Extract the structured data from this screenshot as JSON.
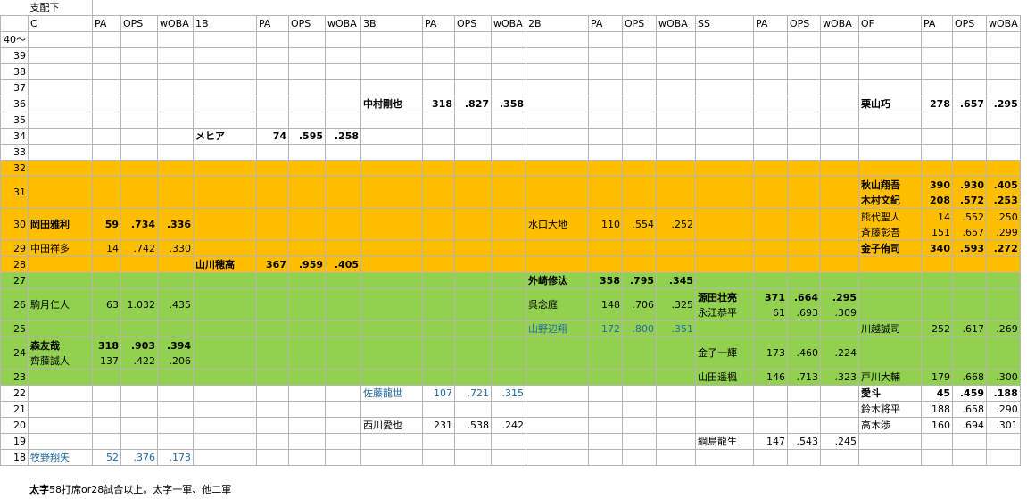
{
  "title": "支配下",
  "headers": [
    "C",
    "PA",
    "OPS",
    "wOBA",
    "1B",
    "PA",
    "OPS",
    "wOBA",
    "3B",
    "PA",
    "OPS",
    "wOBA",
    "2B",
    "PA",
    "OPS",
    "wOBA",
    "SS",
    "PA",
    "OPS",
    "wOBA",
    "OF",
    "PA",
    "OPS",
    "wOBA"
  ],
  "rows": [
    {
      "age": "40～",
      "band": "",
      "cells": []
    },
    {
      "age": "39",
      "band": "",
      "cells": []
    },
    {
      "age": "38",
      "band": "",
      "cells": []
    },
    {
      "age": "37",
      "band": "",
      "cells": []
    },
    {
      "age": "36",
      "band": "",
      "cells": [
        {
          "pos": "3B",
          "lines": [
            {
              "name": "中村剛也",
              "pa": "318",
              "ops": ".827",
              "woba": ".358",
              "style": "bold"
            }
          ]
        },
        {
          "pos": "OF",
          "lines": [
            {
              "name": "栗山巧",
              "pa": "278",
              "ops": ".657",
              "woba": ".295",
              "style": "bold"
            }
          ]
        }
      ]
    },
    {
      "age": "35",
      "band": "",
      "cells": []
    },
    {
      "age": "34",
      "band": "",
      "cells": [
        {
          "pos": "1B",
          "lines": [
            {
              "name": "メヒア",
              "pa": "74",
              "ops": ".595",
              "woba": ".258",
              "style": "bold"
            }
          ]
        }
      ]
    },
    {
      "age": "33",
      "band": "",
      "cells": []
    },
    {
      "age": "32",
      "band": "orange",
      "cells": []
    },
    {
      "age": "31",
      "band": "orange",
      "tall": true,
      "cells": [
        {
          "pos": "OF",
          "lines": [
            {
              "name": "秋山翔吾",
              "pa": "390",
              "ops": ".930",
              "woba": ".405",
              "style": "bold"
            },
            {
              "name": "木村文紀",
              "pa": "208",
              "ops": ".572",
              "woba": ".253",
              "style": "bold"
            }
          ]
        }
      ]
    },
    {
      "age": "30",
      "band": "orange",
      "tall": true,
      "cells": [
        {
          "pos": "C",
          "lines": [
            {
              "name": "岡田雅利",
              "pa": "59",
              "ops": ".734",
              "woba": ".336",
              "style": "bold"
            }
          ]
        },
        {
          "pos": "2B",
          "lines": [
            {
              "name": "水口大地",
              "pa": "110",
              "ops": ".554",
              "woba": ".252",
              "style": ""
            }
          ]
        },
        {
          "pos": "OF",
          "lines": [
            {
              "name": "熊代聖人",
              "pa": "14",
              "ops": ".552",
              "woba": ".250",
              "style": ""
            },
            {
              "name": "斉藤彰吾",
              "pa": "151",
              "ops": ".657",
              "woba": ".299",
              "style": ""
            }
          ]
        }
      ]
    },
    {
      "age": "29",
      "band": "orange",
      "cells": [
        {
          "pos": "C",
          "lines": [
            {
              "name": "中田祥多",
              "pa": "14",
              "ops": ".742",
              "woba": ".330",
              "style": ""
            }
          ]
        },
        {
          "pos": "OF",
          "lines": [
            {
              "name": "金子侑司",
              "pa": "340",
              "ops": ".593",
              "woba": ".272",
              "style": "bold"
            }
          ]
        }
      ]
    },
    {
      "age": "28",
      "band": "orange",
      "cells": [
        {
          "pos": "1B",
          "lines": [
            {
              "name": "山川穂高",
              "pa": "367",
              "ops": ".959",
              "woba": ".405",
              "style": "bold"
            }
          ]
        }
      ]
    },
    {
      "age": "27",
      "band": "green",
      "cells": [
        {
          "pos": "2B",
          "lines": [
            {
              "name": "外崎修汰",
              "pa": "358",
              "ops": ".795",
              "woba": ".345",
              "style": "bold"
            }
          ]
        }
      ]
    },
    {
      "age": "26",
      "band": "green",
      "tall": true,
      "cells": [
        {
          "pos": "C",
          "lines": [
            {
              "name": "駒月仁人",
              "pa": "63",
              "ops": "1.032",
              "woba": ".435",
              "style": ""
            }
          ]
        },
        {
          "pos": "2B",
          "lines": [
            {
              "name": "呉念庭",
              "pa": "148",
              "ops": ".706",
              "woba": ".325",
              "style": ""
            }
          ]
        },
        {
          "pos": "SS",
          "lines": [
            {
              "name": "源田壮亮",
              "pa": "371",
              "ops": ".664",
              "woba": ".295",
              "style": "bold"
            },
            {
              "name": "永江恭平",
              "pa": "61",
              "ops": ".693",
              "woba": ".309",
              "style": ""
            }
          ]
        }
      ]
    },
    {
      "age": "25",
      "band": "green",
      "cells": [
        {
          "pos": "2B",
          "lines": [
            {
              "name": "山野辺翔",
              "pa": "172",
              "ops": ".800",
              "woba": ".351",
              "style": "blue"
            }
          ]
        },
        {
          "pos": "OF",
          "lines": [
            {
              "name": "川越誠司",
              "pa": "252",
              "ops": ".617",
              "woba": ".269",
              "style": ""
            }
          ]
        }
      ]
    },
    {
      "age": "24",
      "band": "green",
      "tall": true,
      "cells": [
        {
          "pos": "C",
          "lines": [
            {
              "name": "森友哉",
              "pa": "318",
              "ops": ".903",
              "woba": ".394",
              "style": "bold"
            },
            {
              "name": "齊藤誠人",
              "pa": "137",
              "ops": ".422",
              "woba": ".206",
              "style": ""
            }
          ]
        },
        {
          "pos": "SS",
          "lines": [
            {
              "name": "金子一輝",
              "pa": "173",
              "ops": ".460",
              "woba": ".224",
              "style": ""
            }
          ]
        }
      ]
    },
    {
      "age": "23",
      "band": "green",
      "cells": [
        {
          "pos": "SS",
          "lines": [
            {
              "name": "山田遥楓",
              "pa": "146",
              "ops": ".713",
              "woba": ".323",
              "style": ""
            }
          ]
        },
        {
          "pos": "OF",
          "lines": [
            {
              "name": "戸川大輔",
              "pa": "179",
              "ops": ".668",
              "woba": ".300",
              "style": ""
            }
          ]
        }
      ]
    },
    {
      "age": "22",
      "band": "",
      "cells": [
        {
          "pos": "3B",
          "lines": [
            {
              "name": "佐藤龍世",
              "pa": "107",
              "ops": ".721",
              "woba": ".315",
              "style": "blue"
            }
          ]
        },
        {
          "pos": "OF",
          "lines": [
            {
              "name": "愛斗",
              "pa": "45",
              "ops": ".459",
              "woba": ".188",
              "style": "bold"
            }
          ]
        }
      ]
    },
    {
      "age": "21",
      "band": "",
      "cells": [
        {
          "pos": "OF",
          "lines": [
            {
              "name": "鈴木将平",
              "pa": "188",
              "ops": ".658",
              "woba": ".290",
              "style": ""
            }
          ]
        }
      ]
    },
    {
      "age": "20",
      "band": "",
      "cells": [
        {
          "pos": "3B",
          "lines": [
            {
              "name": "西川愛也",
              "pa": "231",
              "ops": ".538",
              "woba": ".242",
              "style": ""
            }
          ]
        },
        {
          "pos": "OF",
          "lines": [
            {
              "name": "高木渉",
              "pa": "160",
              "ops": ".694",
              "woba": ".301",
              "style": ""
            }
          ]
        }
      ]
    },
    {
      "age": "19",
      "band": "",
      "cells": [
        {
          "pos": "SS",
          "lines": [
            {
              "name": "綱島龍生",
              "pa": "147",
              "ops": ".543",
              "woba": ".245",
              "style": ""
            }
          ]
        }
      ]
    },
    {
      "age": "18",
      "band": "",
      "cells": [
        {
          "pos": "C",
          "lines": [
            {
              "name": "牧野翔矢",
              "pa": "52",
              "ops": ".376",
              "woba": ".173",
              "style": "blue"
            }
          ]
        }
      ]
    }
  ],
  "footnote": {
    "bold_part": "太字",
    "rest": "58打席or28試合以上。太字一軍、他二軍"
  },
  "colors": {
    "orange": "#ffbf00",
    "green": "#92d050",
    "blue_text": "#1f6ba8",
    "grid": "#b5b5b5"
  }
}
